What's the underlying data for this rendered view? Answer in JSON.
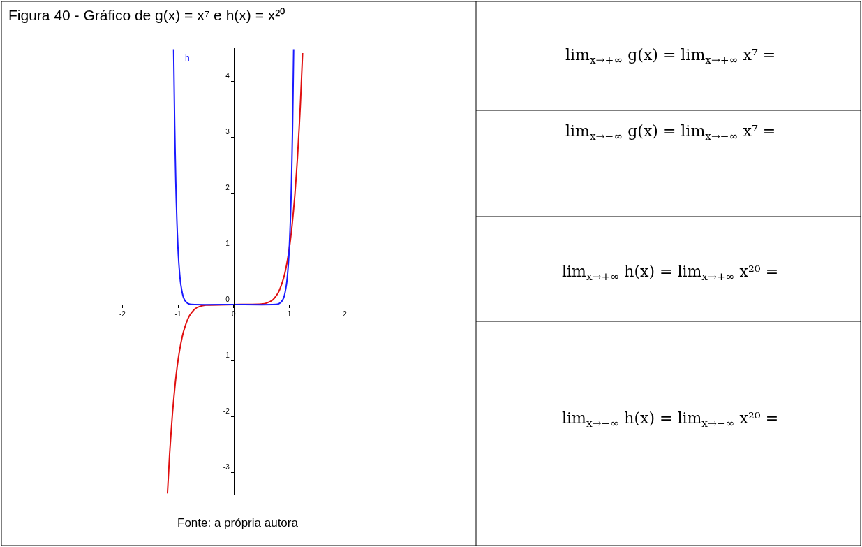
{
  "chart_data": [
    {
      "type": "line",
      "title": "Figura 40 - Gráfico de g(x) = x⁷ e h(x) = x²⁰",
      "annotations": [
        "Fonte: a própria autora"
      ],
      "xlim": [
        -2.13,
        2.35
      ],
      "ylim": [
        -3.4,
        4.6
      ],
      "xticks": [
        -2,
        -1,
        0,
        1,
        2
      ],
      "yticks": [
        -3,
        -2,
        -1,
        0,
        1,
        2,
        3,
        4
      ],
      "legend": false,
      "marker": "none",
      "line_style": "solid",
      "series": [
        {
          "color": "#e01010",
          "x": [
            -1.19,
            -1.15,
            -1.1,
            -1.05,
            -1.0,
            -0.95,
            -0.9,
            -0.8,
            -0.7,
            -0.6,
            -0.5,
            0,
            0.5,
            0.6,
            0.7,
            0.8,
            0.9,
            0.95,
            1.0,
            1.05,
            1.1,
            1.15,
            1.2,
            1.24
          ],
          "values": [
            -3.38,
            -2.66,
            -1.95,
            -1.41,
            -1.0,
            -0.7,
            -0.48,
            -0.21,
            -0.08,
            -0.03,
            -0.01,
            0,
            0.01,
            0.03,
            0.08,
            0.21,
            0.48,
            0.7,
            1.0,
            1.41,
            1.95,
            2.66,
            3.58,
            4.5
          ]
        },
        {
          "name": "h",
          "color": "#1a1aff",
          "x": [
            -1.079,
            -1.06,
            -1.04,
            -1.02,
            -1.0,
            -0.98,
            -0.95,
            -0.9,
            -0.85,
            -0.8,
            -0.7,
            0,
            0.7,
            0.8,
            0.85,
            0.9,
            0.95,
            0.98,
            1.0,
            1.02,
            1.04,
            1.06,
            1.079
          ],
          "values": [
            4.57,
            3.21,
            2.19,
            1.49,
            1.0,
            0.67,
            0.36,
            0.12,
            0.04,
            0.01,
            0,
            0,
            0,
            0.01,
            0.04,
            0.12,
            0.36,
            0.67,
            1.0,
            1.49,
            2.19,
            3.21,
            4.57
          ]
        }
      ]
    },
    {
      "type": "other",
      "annotations": [
        "lim$_{x→+∞}$ g(x) = lim$_{x→+∞}$ x⁷ =",
        "lim$_{x→−∞}$ g(x) = lim$_{x→−∞}$ x⁷ =",
        "lim$_{x→+∞}$ h(x) = lim$_{x→+∞}$ x²⁰ =",
        "lim$_{x→−∞}$ h(x) = lim$_{x→−∞}$ x²⁰ ="
      ]
    }
  ]
}
